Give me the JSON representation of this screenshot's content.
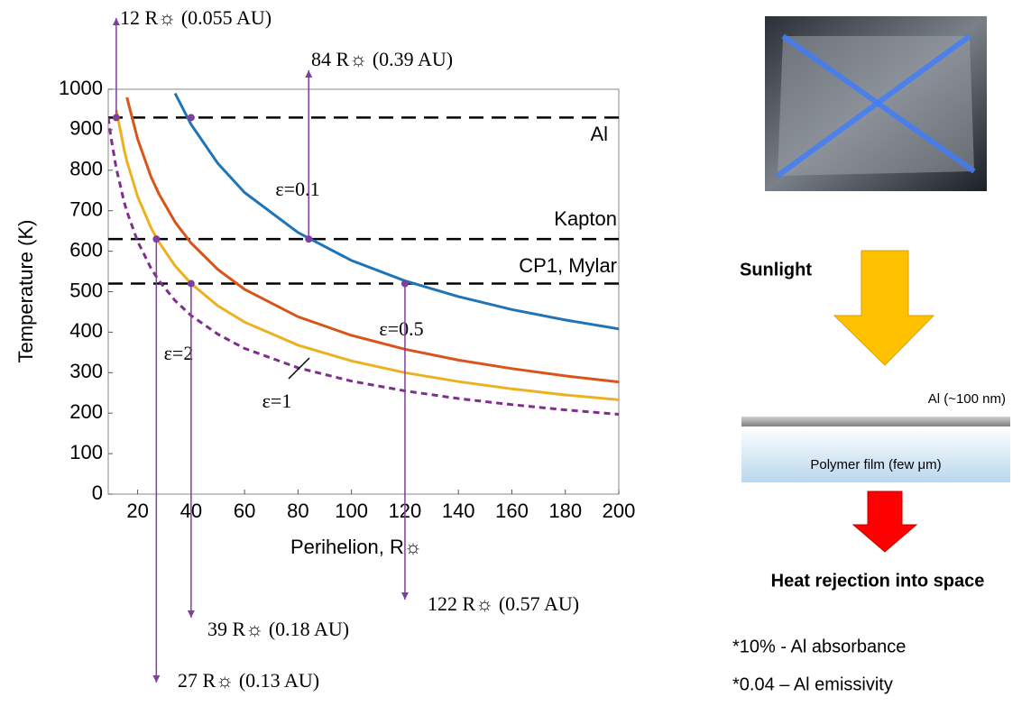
{
  "chart_data": {
    "type": "line",
    "xlabel": "Perihelion, R☼",
    "ylabel": "Temperature (K)",
    "x": [
      9,
      10,
      12,
      15,
      16,
      20,
      25,
      28,
      34,
      40,
      50,
      60,
      80,
      100,
      120,
      140,
      160,
      180,
      200
    ],
    "series": [
      {
        "name": "ε=0.1",
        "color": "#1f74b8",
        "dashed": false,
        "values": [
          null,
          null,
          null,
          null,
          null,
          null,
          null,
          null,
          990,
          913,
          817,
          745,
          646,
          577,
          527,
          488,
          456,
          430,
          408
        ]
      },
      {
        "name": "ε=0.5",
        "color": "#d9541a",
        "dashed": false,
        "values": [
          null,
          null,
          null,
          null,
          980,
          877,
          784,
          741,
          672,
          620,
          555,
          506,
          438,
          392,
          358,
          331,
          310,
          292,
          277
        ]
      },
      {
        "name": "ε=1",
        "color": "#edb120",
        "dashed": false,
        "values": [
          null,
          null,
          949,
          849,
          822,
          735,
          658,
          622,
          564,
          520,
          465,
          425,
          368,
          329,
          300,
          278,
          260,
          245,
          233
        ]
      },
      {
        "name": "ε=2",
        "color": "#7e2f8e",
        "dashed": true,
        "values": [
          930,
          882,
          805,
          720,
          698,
          624,
          558,
          527,
          478,
          441,
          395,
          360,
          312,
          279,
          255,
          236,
          221,
          208,
          197
        ]
      }
    ],
    "xlim": [
      9,
      200
    ],
    "ylim": [
      0,
      1000
    ],
    "xticks": [
      20,
      40,
      60,
      80,
      100,
      120,
      140,
      160,
      180,
      200
    ],
    "yticks": [
      0,
      100,
      200,
      300,
      400,
      500,
      600,
      700,
      800,
      900,
      1000
    ],
    "reference_lines": [
      {
        "value": 930,
        "label": "Al"
      },
      {
        "value": 630,
        "label": "Kapton"
      },
      {
        "value": 520,
        "label": "CP1, Mylar"
      }
    ],
    "markers": [
      {
        "x": 12,
        "y": 930,
        "label": "12 R☼ (0.055 AU)"
      },
      {
        "x": 84,
        "y": 630,
        "label": "84 R☼ (0.39 AU)"
      },
      {
        "x": 27,
        "y": 630,
        "label": "27 R☼ (0.13 AU)"
      },
      {
        "x": 40,
        "y": 520,
        "label": "39 R☼ (0.18 AU)"
      },
      {
        "x": 120,
        "y": 520,
        "label": "122 R☼ (0.57 AU)"
      },
      {
        "x": 40,
        "y": 930
      }
    ],
    "marker_color": "#7e3fa0"
  },
  "diagram": {
    "sunlight": "Sunlight",
    "layer_top": "Al (~100 nm)",
    "layer_bottom": "Polymer film (few μm)",
    "output": "Heat rejection into space",
    "notes": [
      "*10% - Al absorbance",
      "*0.04 – Al emissivity"
    ]
  }
}
